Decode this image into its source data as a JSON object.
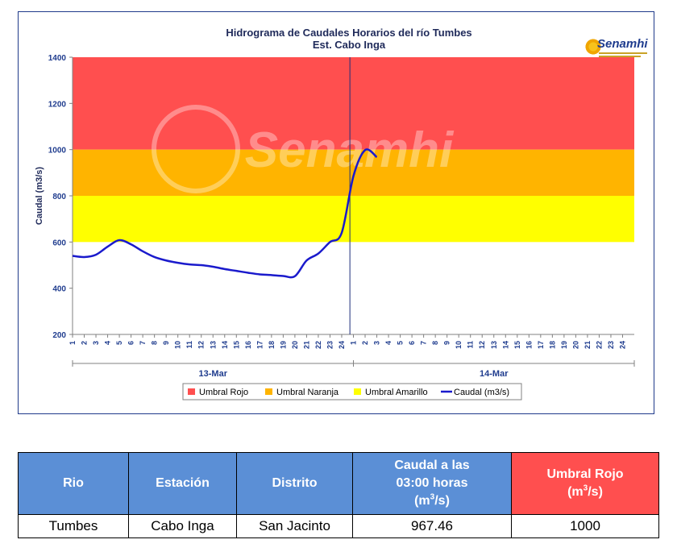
{
  "chart_data": {
    "type": "line",
    "title": "Hidrograma de Caudales Horarios del río Tumbes",
    "subtitle": "Est. Cabo Inga",
    "ylabel": "Caudal  (m3/s)",
    "ylim": [
      200,
      1400
    ],
    "yticks": [
      "200",
      "400",
      "600",
      "800",
      "1000",
      "1200",
      "1400"
    ],
    "day_groups": [
      {
        "label": "13-Mar",
        "hours": [
          "1",
          "2",
          "3",
          "4",
          "5",
          "6",
          "7",
          "8",
          "9",
          "10",
          "11",
          "12",
          "13",
          "14",
          "15",
          "16",
          "17",
          "18",
          "19",
          "20",
          "21",
          "22",
          "23",
          "24"
        ]
      },
      {
        "label": "14-Mar",
        "hours": [
          "1",
          "2",
          "3",
          "4",
          "5",
          "6",
          "7",
          "8",
          "9",
          "10",
          "11",
          "12",
          "13",
          "14",
          "15",
          "16",
          "17",
          "18",
          "19",
          "20",
          "21",
          "22",
          "23",
          "24"
        ]
      }
    ],
    "bands": [
      {
        "name": "Umbral Rojo",
        "from": 1000,
        "to": 1400,
        "color": "#ff4f4f"
      },
      {
        "name": "Umbral Naranja",
        "from": 800,
        "to": 1000,
        "color": "#ffb400"
      },
      {
        "name": "Umbral Amarillo",
        "from": 600,
        "to": 800,
        "color": "#ffff00"
      }
    ],
    "series": [
      {
        "name": "Caudal (m3/s)",
        "color": "#1a1acc",
        "x": [
          1,
          2,
          3,
          4,
          5,
          6,
          7,
          8,
          9,
          10,
          11,
          12,
          13,
          14,
          15,
          16,
          17,
          18,
          19,
          20,
          21,
          22,
          23,
          24,
          25,
          26,
          27
        ],
        "values": [
          540,
          535,
          545,
          580,
          608,
          590,
          560,
          535,
          520,
          510,
          503,
          500,
          493,
          483,
          475,
          467,
          460,
          457,
          453,
          452,
          520,
          550,
          600,
          640,
          885,
          998,
          967.46
        ]
      }
    ],
    "marker_line_after_hour": 24,
    "legend_position": "bottom",
    "watermark": "Senamhi"
  },
  "logo_text": "Senamhi",
  "table": {
    "headers": {
      "rio": "Rio",
      "estacion": "Estación",
      "distrito": "Distrito",
      "caudal_line1": "Caudal a las",
      "caudal_line2": "03:00 horas",
      "caudal_unit": "(m",
      "caudal_unit_sup": "3",
      "caudal_unit_end": "/s)",
      "umbral_line1": "Umbral Rojo",
      "umbral_unit": "(m",
      "umbral_unit_sup": "3",
      "umbral_unit_end": "/s)"
    },
    "row": {
      "rio": "Tumbes",
      "estacion": "Cabo Inga",
      "distrito": "San Jacinto",
      "caudal": "967.46",
      "umbral": "1000"
    }
  }
}
